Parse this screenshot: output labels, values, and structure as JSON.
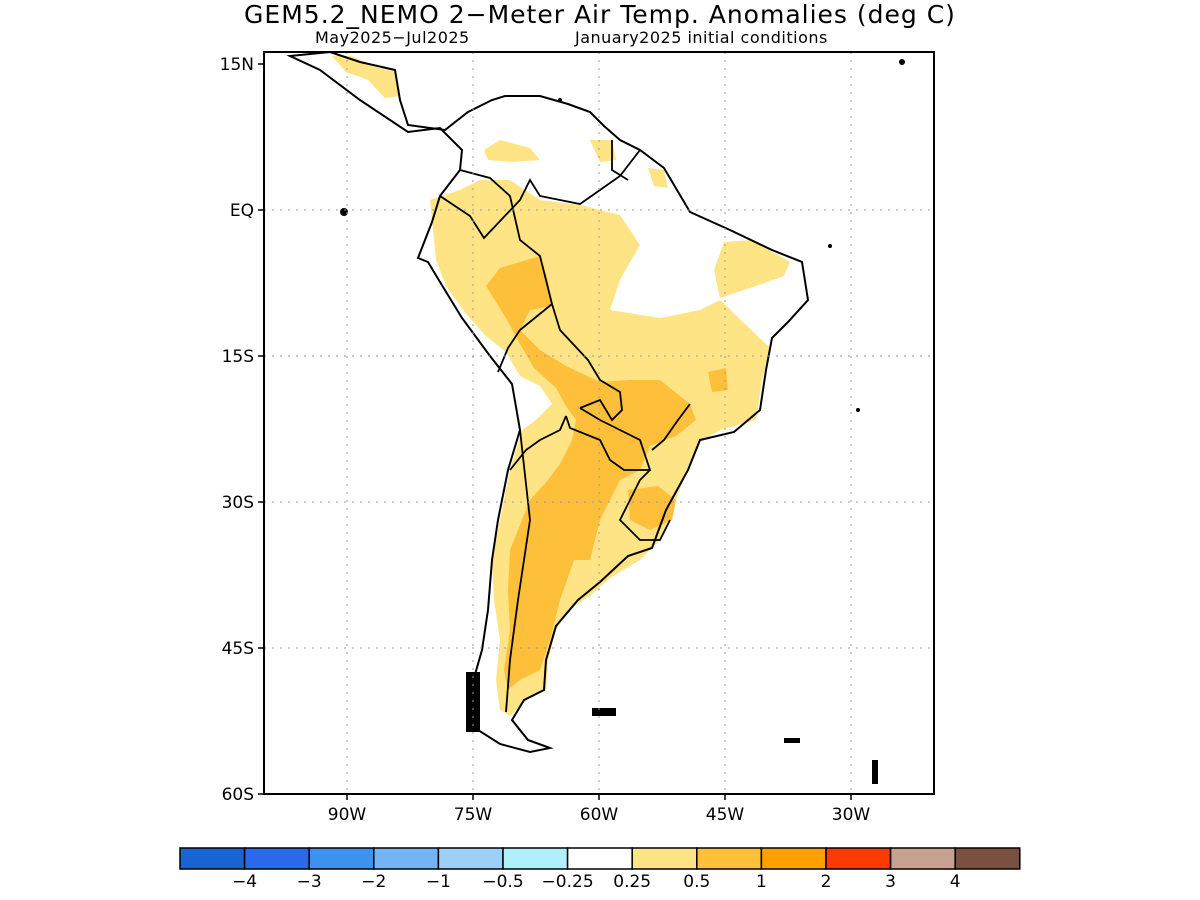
{
  "header": {
    "title": "GEM5.2_NEMO 2−Meter Air Temp. Anomalies (deg C)",
    "period": "May2025−Jul2025",
    "initial_conditions": "January2025 initial conditions"
  },
  "map": {
    "region": "South America",
    "lat_labels": [
      "15N",
      "EQ",
      "15S",
      "30S",
      "45S",
      "60S"
    ],
    "lon_labels": [
      "90W",
      "75W",
      "60W",
      "45W",
      "30W"
    ],
    "grid": "dotted"
  },
  "legend": {
    "colors": [
      "#1864d2",
      "#2a6ae8",
      "#3c92ee",
      "#74b4f4",
      "#9cd0f8",
      "#b0f0fa",
      "#ffffff",
      "#fee484",
      "#fec03a",
      "#fea000",
      "#fe3a00",
      "#c8a090",
      "#7a5040"
    ],
    "labels": [
      "−4",
      "−3",
      "−2",
      "−1",
      "−0.5",
      "−0.25",
      "0.25",
      "0.5",
      "1",
      "2",
      "3",
      "4"
    ]
  },
  "anomaly_colors": {
    "light_warm": "#fee484",
    "warm": "#fec03a"
  }
}
